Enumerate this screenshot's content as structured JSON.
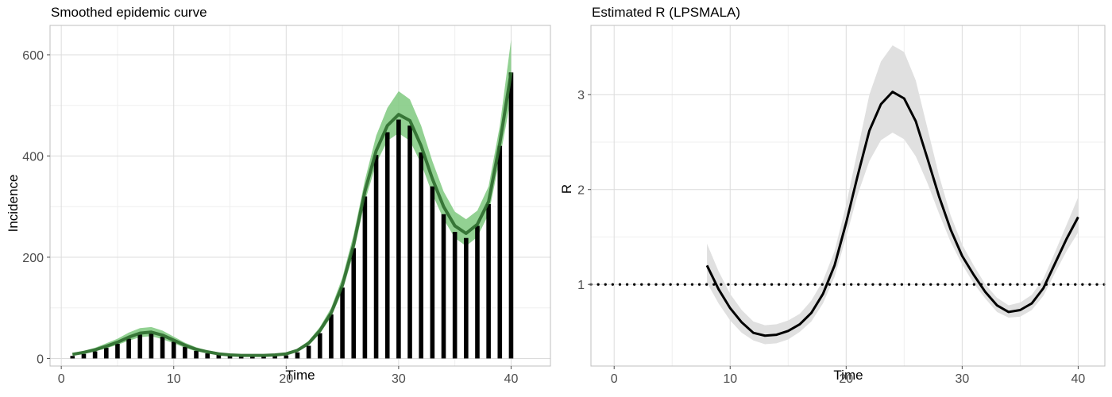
{
  "chart_data": [
    {
      "type": "bar",
      "title": "Smoothed epidemic curve",
      "xlabel": "Time",
      "ylabel": "Incidence",
      "xlim": [
        -1,
        43.5
      ],
      "ylim": [
        -15,
        658
      ],
      "x_ticks": [
        0,
        10,
        20,
        30,
        40
      ],
      "y_ticks": [
        0,
        200,
        400,
        600
      ],
      "x_tick_labels": [
        "0",
        "10",
        "20",
        "30",
        "40"
      ],
      "y_tick_labels": [
        "0",
        "200",
        "400",
        "600"
      ],
      "grid": true,
      "colors": {
        "bars": "#000000",
        "fit_line": "#2e6b2e",
        "ribbon": "#7fc97f"
      },
      "x": [
        1,
        2,
        3,
        4,
        5,
        6,
        7,
        8,
        9,
        10,
        11,
        12,
        13,
        14,
        15,
        16,
        17,
        18,
        19,
        20,
        21,
        22,
        23,
        24,
        25,
        26,
        27,
        28,
        29,
        30,
        31,
        32,
        33,
        34,
        35,
        36,
        37,
        38,
        39,
        40
      ],
      "series": [
        {
          "kind": "bars",
          "values": [
            5,
            9,
            14,
            21,
            29,
            39,
            47,
            49,
            43,
            33,
            23,
            15,
            10,
            7,
            5,
            4,
            4,
            4,
            5,
            6,
            12,
            25,
            50,
            87,
            140,
            218,
            320,
            402,
            447,
            472,
            460,
            407,
            340,
            285,
            250,
            238,
            262,
            305,
            420,
            565
          ]
        },
        {
          "kind": "line",
          "values": [
            8,
            12,
            17,
            24,
            32,
            42,
            50,
            52,
            46,
            36,
            26,
            18,
            13,
            9,
            7,
            6,
            6,
            6,
            7,
            9,
            16,
            30,
            55,
            90,
            145,
            225,
            330,
            410,
            460,
            482,
            470,
            420,
            355,
            300,
            262,
            247,
            265,
            310,
            425,
            565
          ]
        },
        {
          "kind": "ribbon",
          "lower": [
            6,
            9,
            14,
            20,
            27,
            35,
            42,
            44,
            38,
            30,
            21,
            14,
            10,
            7,
            5,
            4,
            4,
            4,
            5,
            7,
            13,
            26,
            49,
            82,
            133,
            208,
            310,
            385,
            430,
            445,
            430,
            385,
            325,
            275,
            238,
            222,
            240,
            285,
            395,
            515
          ],
          "upper": [
            11,
            15,
            21,
            30,
            39,
            51,
            60,
            62,
            55,
            43,
            31,
            22,
            16,
            12,
            9,
            8,
            8,
            8,
            9,
            12,
            19,
            35,
            62,
            100,
            160,
            245,
            352,
            440,
            495,
            528,
            512,
            460,
            390,
            330,
            290,
            275,
            292,
            340,
            460,
            630
          ]
        }
      ]
    },
    {
      "type": "line",
      "title": "Estimated R (LPSMALA)",
      "xlabel": "Time",
      "ylabel": "R",
      "xlim": [
        -2,
        42.3
      ],
      "ylim": [
        0.14,
        3.73
      ],
      "x_ticks": [
        0,
        10,
        20,
        30,
        40
      ],
      "y_ticks": [
        1,
        2,
        3
      ],
      "x_tick_labels": [
        "0",
        "10",
        "20",
        "30",
        "40"
      ],
      "y_tick_labels": [
        "1",
        "2",
        "3"
      ],
      "grid": true,
      "reference_line": {
        "y": 1,
        "style": "dotted"
      },
      "colors": {
        "line": "#000000",
        "ribbon": "#e0e0e0"
      },
      "x": [
        8,
        9,
        10,
        11,
        12,
        13,
        14,
        15,
        16,
        17,
        18,
        19,
        20,
        21,
        22,
        23,
        24,
        25,
        26,
        27,
        28,
        29,
        30,
        31,
        32,
        33,
        34,
        35,
        36,
        37,
        38,
        39,
        40
      ],
      "series": [
        {
          "kind": "line",
          "values": [
            1.2,
            0.95,
            0.75,
            0.6,
            0.49,
            0.46,
            0.47,
            0.51,
            0.58,
            0.7,
            0.9,
            1.2,
            1.65,
            2.15,
            2.62,
            2.9,
            3.03,
            2.96,
            2.72,
            2.33,
            1.93,
            1.58,
            1.3,
            1.1,
            0.92,
            0.78,
            0.71,
            0.73,
            0.8,
            0.96,
            1.22,
            1.48,
            1.71
          ]
        },
        {
          "kind": "ribbon",
          "lower": [
            1.02,
            0.8,
            0.62,
            0.49,
            0.41,
            0.37,
            0.38,
            0.42,
            0.5,
            0.61,
            0.8,
            1.08,
            1.5,
            1.95,
            2.3,
            2.52,
            2.6,
            2.53,
            2.35,
            2.07,
            1.75,
            1.45,
            1.21,
            1.01,
            0.85,
            0.71,
            0.65,
            0.66,
            0.73,
            0.88,
            1.12,
            1.35,
            1.55
          ]
        },
        {
          "kind": "ribbon_upper",
          "upper": [
            1.43,
            1.14,
            0.9,
            0.73,
            0.61,
            0.57,
            0.58,
            0.62,
            0.69,
            0.83,
            1.04,
            1.35,
            1.84,
            2.42,
            3.0,
            3.35,
            3.52,
            3.45,
            3.15,
            2.65,
            2.15,
            1.73,
            1.42,
            1.2,
            1.0,
            0.86,
            0.78,
            0.81,
            0.89,
            1.06,
            1.34,
            1.63,
            1.92
          ]
        }
      ]
    }
  ]
}
